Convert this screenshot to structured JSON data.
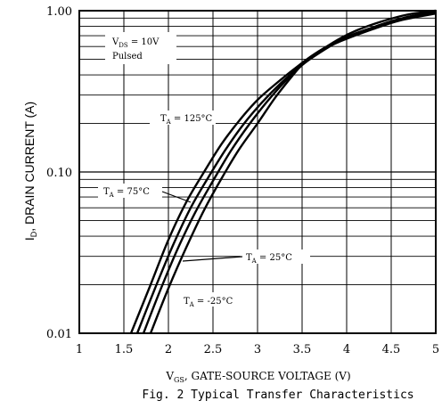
{
  "chart_data": {
    "type": "line",
    "title": "",
    "caption": "Fig. 2 Typical Transfer Characteristics",
    "ylabel_main": "I",
    "ylabel_sub": "D",
    "ylabel_rest": ", DRAIN CURRENT (A)",
    "xlabel_main": "V",
    "xlabel_sub": "GS",
    "xlabel_rest": ", GATE-SOURCE VOLTAGE (V)",
    "xlim": [
      1,
      5
    ],
    "ylim": [
      0.01,
      1.0
    ],
    "yscale": "log",
    "grid": true,
    "x_ticks": [
      {
        "value": 1,
        "label": "1"
      },
      {
        "value": 1.5,
        "label": "1.5"
      },
      {
        "value": 2,
        "label": "2"
      },
      {
        "value": 2.5,
        "label": "2.5"
      },
      {
        "value": 3,
        "label": "3"
      },
      {
        "value": 3.5,
        "label": "3.5"
      },
      {
        "value": 4,
        "label": "4"
      },
      {
        "value": 4.5,
        "label": "4.5"
      },
      {
        "value": 5,
        "label": "5"
      }
    ],
    "y_ticks": [
      {
        "value": 0.01,
        "label": "0.01"
      },
      {
        "value": 0.1,
        "label": "0.10"
      },
      {
        "value": 1.0,
        "label": "1.00"
      }
    ],
    "conditions": {
      "line1_main": "V",
      "line1_sub": "DS",
      "line1_rest": " = 10V",
      "line2": "Pulsed"
    },
    "series": [
      {
        "label_main": "T",
        "label_sub": "A",
        "label_rest": " = 125°C",
        "x": [
          1.58,
          1.8,
          2.0,
          2.2,
          2.4,
          2.6,
          2.8,
          3.0,
          3.2,
          3.4,
          3.6,
          3.8,
          4.0,
          4.3,
          4.6,
          5.0
        ],
        "y": [
          0.01,
          0.02,
          0.038,
          0.065,
          0.1,
          0.15,
          0.21,
          0.28,
          0.35,
          0.43,
          0.52,
          0.6,
          0.67,
          0.77,
          0.87,
          0.96
        ]
      },
      {
        "label_main": "T",
        "label_sub": "A",
        "label_rest": " = 75°C",
        "x": [
          1.65,
          1.85,
          2.05,
          2.25,
          2.45,
          2.65,
          2.85,
          3.05,
          3.25,
          3.45,
          3.6,
          3.8,
          4.0,
          4.3,
          4.6,
          5.0
        ],
        "y": [
          0.01,
          0.019,
          0.035,
          0.06,
          0.093,
          0.14,
          0.2,
          0.27,
          0.35,
          0.44,
          0.52,
          0.61,
          0.69,
          0.79,
          0.89,
          0.97
        ]
      },
      {
        "label_main": "T",
        "label_sub": "A",
        "label_rest": " = 25°C",
        "x": [
          1.72,
          1.9,
          2.1,
          2.3,
          2.5,
          2.7,
          2.9,
          3.1,
          3.3,
          3.5,
          3.7,
          3.9,
          4.1,
          4.4,
          4.7,
          5.0
        ],
        "y": [
          0.01,
          0.018,
          0.033,
          0.056,
          0.088,
          0.135,
          0.195,
          0.27,
          0.36,
          0.46,
          0.55,
          0.64,
          0.72,
          0.82,
          0.92,
          0.98
        ]
      },
      {
        "label_main": "T",
        "label_sub": "A",
        "label_rest": " = -25°C",
        "x": [
          1.8,
          2.0,
          2.2,
          2.4,
          2.6,
          2.8,
          3.0,
          3.2,
          3.4,
          3.5,
          3.7,
          3.9,
          4.1,
          4.4,
          4.7,
          5.0
        ],
        "y": [
          0.01,
          0.019,
          0.034,
          0.058,
          0.092,
          0.14,
          0.2,
          0.29,
          0.4,
          0.46,
          0.56,
          0.66,
          0.75,
          0.86,
          0.95,
          1.0
        ]
      }
    ]
  }
}
